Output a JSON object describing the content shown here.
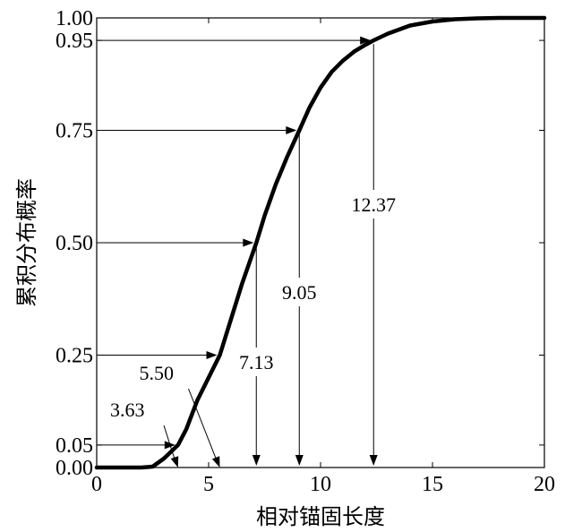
{
  "chart_data": {
    "type": "line",
    "xlabel": "相对锚固长度",
    "ylabel": "累积分布概率",
    "xlim": [
      0,
      20
    ],
    "ylim": [
      0,
      1
    ],
    "x_ticks": [
      0,
      5,
      10,
      15,
      20
    ],
    "x_tick_labels": [
      "0",
      "5",
      "10",
      "15",
      "20"
    ],
    "y_ticks": [
      0,
      0.05,
      0.25,
      0.5,
      0.75,
      0.95,
      1.0
    ],
    "y_tick_labels": [
      "0.00",
      "0.05",
      "0.25",
      "0.50",
      "0.75",
      "0.95",
      "1.00"
    ],
    "grid": false,
    "series": [
      {
        "x": [
          0,
          1,
          2,
          2.5,
          3,
          3.63,
          4,
          4.5,
          5,
          5.5,
          6,
          6.5,
          7.13,
          7.5,
          8,
          8.5,
          9.05,
          9.5,
          10,
          10.5,
          11,
          11.5,
          12,
          12.37,
          13,
          14,
          15,
          16,
          17,
          18,
          19,
          20
        ],
        "y": [
          0,
          0,
          0,
          0.002,
          0.02,
          0.05,
          0.085,
          0.15,
          0.2,
          0.25,
          0.33,
          0.41,
          0.5,
          0.56,
          0.63,
          0.69,
          0.75,
          0.8,
          0.845,
          0.88,
          0.905,
          0.925,
          0.94,
          0.95,
          0.965,
          0.983,
          0.992,
          0.997,
          0.999,
          1.0,
          1.0,
          1.0
        ]
      }
    ],
    "annotations": [
      {
        "p": 0.05,
        "x": 3.63,
        "label": "3.63"
      },
      {
        "p": 0.25,
        "x": 5.5,
        "label": "5.50"
      },
      {
        "p": 0.5,
        "x": 7.13,
        "label": "7.13"
      },
      {
        "p": 0.75,
        "x": 9.05,
        "label": "9.05"
      },
      {
        "p": 0.95,
        "x": 12.37,
        "label": "12.37"
      }
    ]
  }
}
